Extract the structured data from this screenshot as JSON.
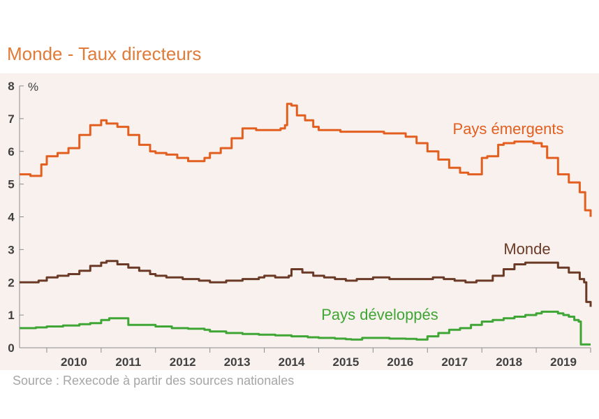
{
  "chart_data": {
    "type": "line",
    "title": "Monde - Taux directeurs",
    "ylabel": "%",
    "ylim": [
      0,
      8
    ],
    "xlim": [
      2009.5,
      2020.0
    ],
    "yticks": [
      "0",
      "1",
      "2",
      "3",
      "4",
      "5",
      "6",
      "7",
      "8"
    ],
    "xticks": [
      "2010",
      "2011",
      "2012",
      "2013",
      "2014",
      "2015",
      "2016",
      "2017",
      "2018",
      "2019"
    ],
    "source": "Source : Rexecode à partir des sources nationales",
    "grid": false,
    "colors": {
      "plot_bg": "#f8f1ee",
      "axis": "#8c8c8c",
      "tick_text": "#404040",
      "title": "#e07b39",
      "source": "#a6a6a6"
    },
    "series": [
      {
        "name": "Pays émergents",
        "color": "#e35f20",
        "x": [
          2009.5,
          2009.7,
          2009.85,
          2009.9,
          2010.0,
          2010.2,
          2010.4,
          2010.6,
          2010.8,
          2011.0,
          2011.1,
          2011.3,
          2011.5,
          2011.7,
          2011.9,
          2012.0,
          2012.2,
          2012.4,
          2012.6,
          2012.9,
          2013.0,
          2013.2,
          2013.4,
          2013.6,
          2013.75,
          2013.85,
          2014.0,
          2014.1,
          2014.3,
          2014.38,
          2014.42,
          2014.5,
          2014.6,
          2014.75,
          2014.9,
          2015.0,
          2015.2,
          2015.4,
          2015.6,
          2015.8,
          2016.0,
          2016.2,
          2016.4,
          2016.6,
          2016.8,
          2017.0,
          2017.2,
          2017.4,
          2017.6,
          2017.75,
          2017.95,
          2018.0,
          2018.1,
          2018.3,
          2018.4,
          2018.6,
          2018.8,
          2018.95,
          2019.1,
          2019.2,
          2019.4,
          2019.6,
          2019.8,
          2019.9,
          2020.0
        ],
        "values": [
          5.3,
          5.25,
          5.25,
          5.6,
          5.85,
          5.95,
          6.1,
          6.5,
          6.8,
          6.95,
          6.85,
          6.75,
          6.5,
          6.2,
          6.0,
          5.95,
          5.9,
          5.8,
          5.7,
          5.8,
          5.95,
          6.1,
          6.4,
          6.7,
          6.7,
          6.65,
          6.65,
          6.65,
          6.7,
          6.8,
          7.45,
          7.4,
          7.1,
          6.95,
          6.75,
          6.65,
          6.65,
          6.6,
          6.6,
          6.6,
          6.6,
          6.55,
          6.55,
          6.45,
          6.25,
          6.0,
          5.75,
          5.5,
          5.35,
          5.3,
          5.3,
          5.8,
          5.85,
          6.2,
          6.25,
          6.3,
          6.3,
          6.25,
          6.15,
          5.8,
          5.3,
          5.05,
          4.75,
          4.2,
          4.0
        ]
      },
      {
        "name": "Monde",
        "color": "#6b3a26",
        "x": [
          2009.5,
          2009.7,
          2009.85,
          2010.0,
          2010.2,
          2010.4,
          2010.6,
          2010.8,
          2011.0,
          2011.1,
          2011.3,
          2011.5,
          2011.7,
          2011.9,
          2012.0,
          2012.2,
          2012.5,
          2012.8,
          2013.0,
          2013.3,
          2013.6,
          2013.9,
          2014.0,
          2014.2,
          2014.45,
          2014.5,
          2014.7,
          2014.9,
          2015.1,
          2015.3,
          2015.5,
          2015.7,
          2016.0,
          2016.3,
          2016.6,
          2016.9,
          2017.1,
          2017.3,
          2017.5,
          2017.7,
          2017.9,
          2018.0,
          2018.2,
          2018.4,
          2018.6,
          2018.8,
          2019.0,
          2019.2,
          2019.4,
          2019.6,
          2019.8,
          2019.88,
          2019.92,
          2020.0
        ],
        "values": [
          2.0,
          2.0,
          2.05,
          2.15,
          2.2,
          2.25,
          2.35,
          2.5,
          2.6,
          2.65,
          2.55,
          2.45,
          2.35,
          2.25,
          2.2,
          2.15,
          2.1,
          2.05,
          2.0,
          2.05,
          2.1,
          2.15,
          2.2,
          2.15,
          2.2,
          2.4,
          2.3,
          2.2,
          2.15,
          2.1,
          2.05,
          2.1,
          2.15,
          2.1,
          2.1,
          2.1,
          2.15,
          2.1,
          2.05,
          2.0,
          2.05,
          2.05,
          2.2,
          2.4,
          2.55,
          2.6,
          2.6,
          2.6,
          2.45,
          2.3,
          2.1,
          2.0,
          1.4,
          1.25
        ]
      },
      {
        "name": "Pays développés",
        "color": "#3fa535",
        "x": [
          2009.5,
          2009.8,
          2010.0,
          2010.3,
          2010.6,
          2010.8,
          2011.0,
          2011.15,
          2011.3,
          2011.5,
          2011.75,
          2012.0,
          2012.3,
          2012.6,
          2012.9,
          2013.0,
          2013.3,
          2013.6,
          2013.9,
          2014.2,
          2014.5,
          2014.8,
          2015.0,
          2015.3,
          2015.5,
          2015.6,
          2015.8,
          2016.0,
          2016.3,
          2016.6,
          2016.8,
          2017.0,
          2017.2,
          2017.4,
          2017.6,
          2017.8,
          2018.0,
          2018.2,
          2018.4,
          2018.6,
          2018.8,
          2019.0,
          2019.1,
          2019.2,
          2019.4,
          2019.5,
          2019.6,
          2019.7,
          2019.78,
          2019.82,
          2020.0
        ],
        "values": [
          0.6,
          0.62,
          0.65,
          0.68,
          0.72,
          0.75,
          0.85,
          0.9,
          0.9,
          0.7,
          0.7,
          0.65,
          0.6,
          0.58,
          0.55,
          0.5,
          0.45,
          0.42,
          0.4,
          0.38,
          0.35,
          0.32,
          0.3,
          0.28,
          0.26,
          0.25,
          0.3,
          0.3,
          0.28,
          0.27,
          0.25,
          0.35,
          0.45,
          0.55,
          0.6,
          0.7,
          0.8,
          0.85,
          0.9,
          0.95,
          1.0,
          1.05,
          1.1,
          1.1,
          1.05,
          1.0,
          0.95,
          0.85,
          0.8,
          0.1,
          0.1
        ]
      }
    ]
  }
}
